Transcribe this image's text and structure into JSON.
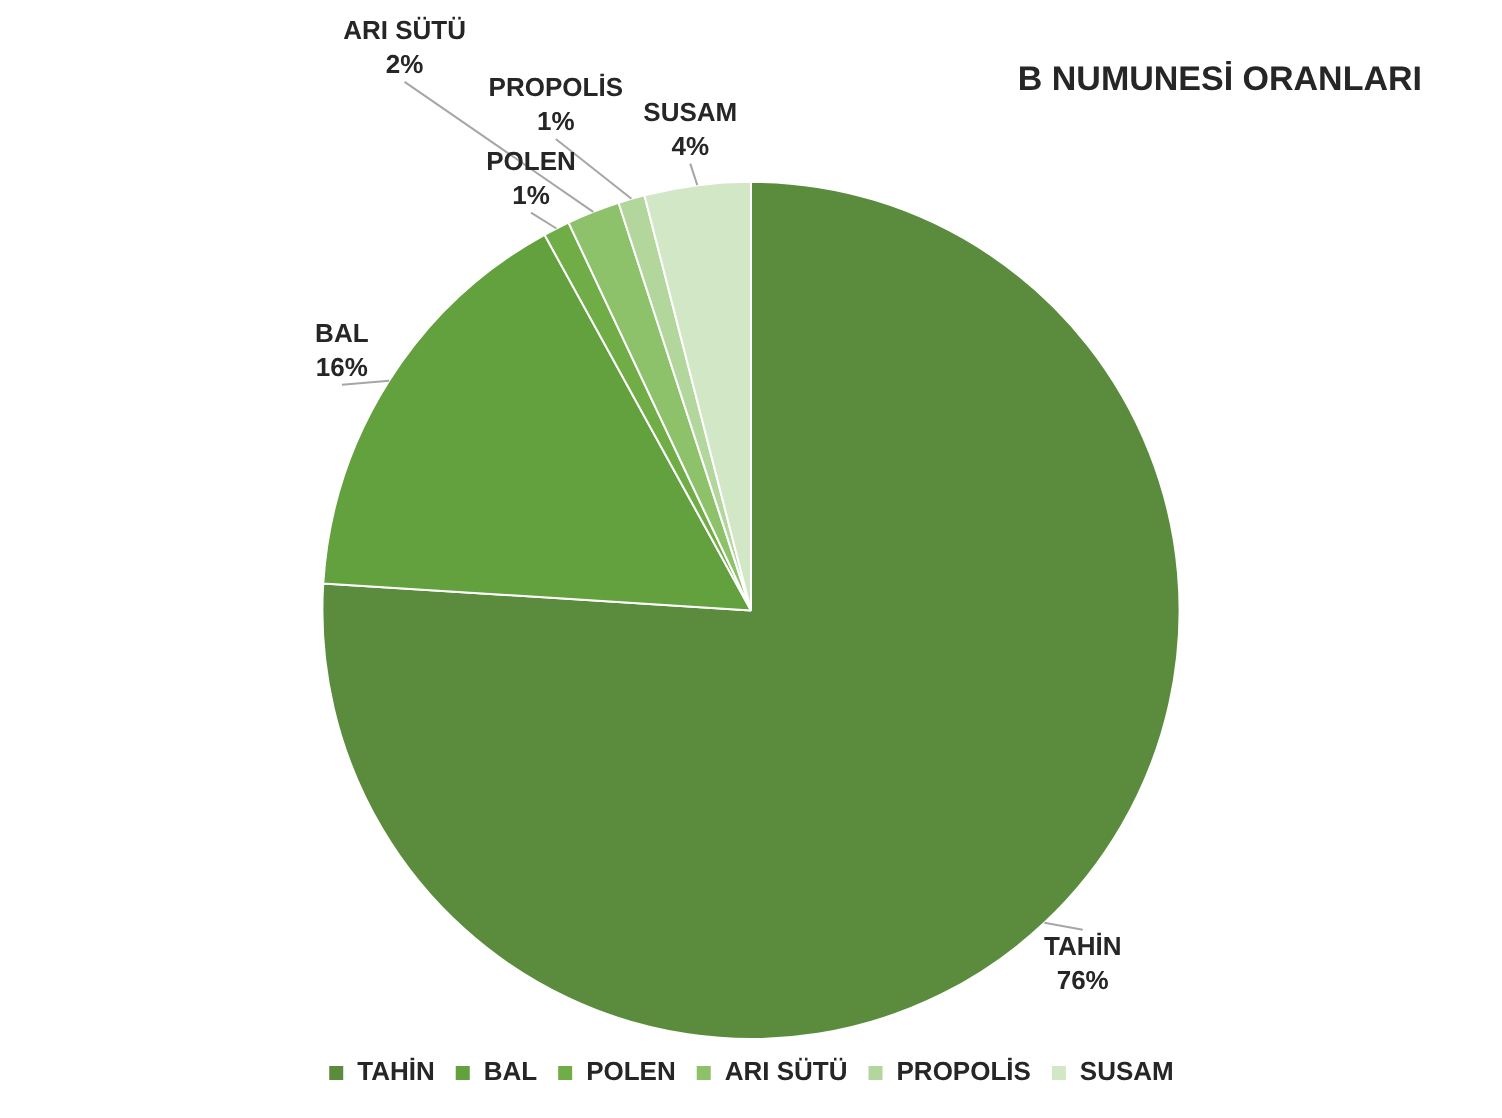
{
  "chart_data": {
    "type": "pie",
    "title": "B NUMUNESİ ORANLARI",
    "categories": [
      "TAHİN",
      "BAL",
      "POLEN",
      "ARI SÜTÜ",
      "PROPOLİS",
      "SUSAM"
    ],
    "values": [
      76,
      16,
      1,
      2,
      1,
      4
    ],
    "colors": [
      "#5b8c3e",
      "#63a03e",
      "#70ad47",
      "#8dc26b",
      "#b2d69c",
      "#d2e7c6"
    ],
    "value_labels": [
      "76%",
      "16%",
      "1%",
      "2%",
      "1%",
      "4%"
    ],
    "legend": "bottom"
  }
}
